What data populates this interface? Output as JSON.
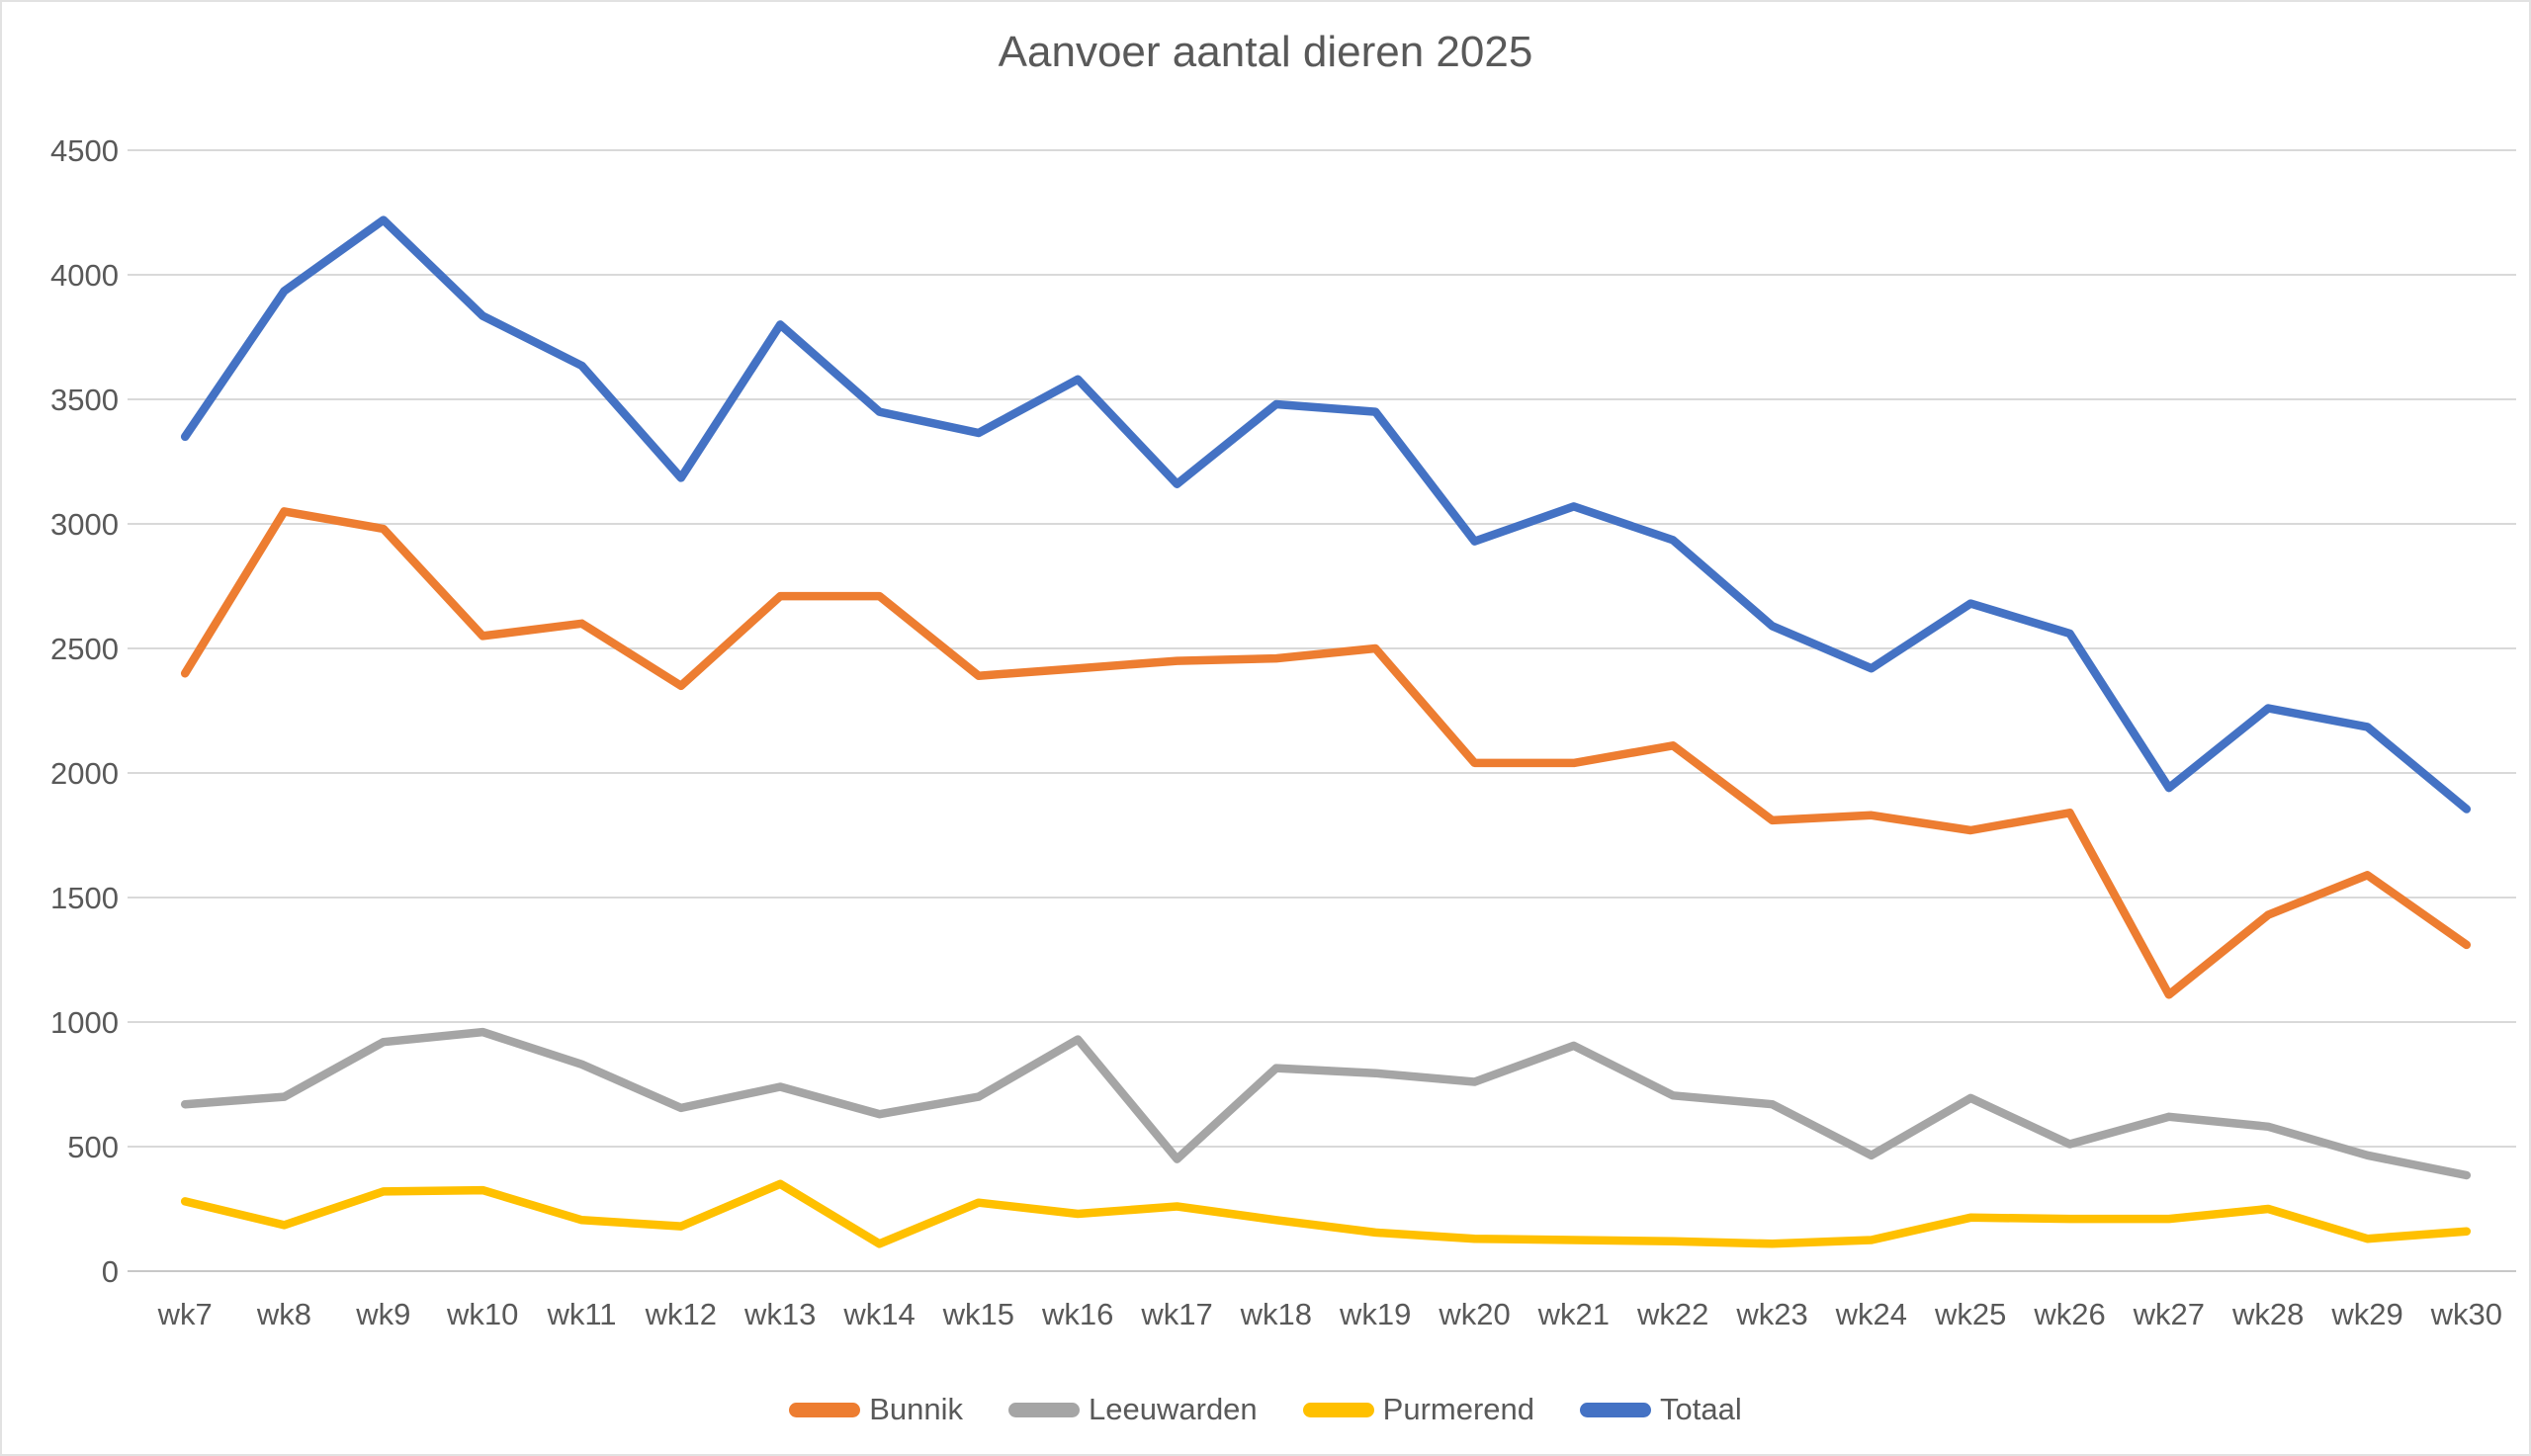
{
  "title": "Aanvoer aantal dieren 2025",
  "chart_data": {
    "type": "line",
    "title": "Aanvoer aantal dieren 2025",
    "categories": [
      "wk7",
      "wk8",
      "wk9",
      "wk10",
      "wk11",
      "wk12",
      "wk13",
      "wk14",
      "wk15",
      "wk16",
      "wk17",
      "wk18",
      "wk19",
      "wk20",
      "wk21",
      "wk22",
      "wk23",
      "wk24",
      "wk25",
      "wk26",
      "wk27",
      "wk28",
      "wk29",
      "wk30"
    ],
    "series": [
      {
        "name": "Bunnik",
        "color": "#ED7D31",
        "values": [
          2400,
          3050,
          2980,
          2550,
          2600,
          2350,
          2710,
          2710,
          2390,
          2420,
          2450,
          2460,
          2500,
          2040,
          2040,
          2110,
          1810,
          1830,
          1770,
          1840,
          1110,
          1430,
          1590,
          1310
        ]
      },
      {
        "name": "Leeuwarden",
        "color": "#A5A5A5",
        "values": [
          670,
          700,
          920,
          960,
          830,
          655,
          740,
          630,
          700,
          930,
          450,
          815,
          795,
          760,
          905,
          705,
          670,
          465,
          695,
          510,
          620,
          580,
          465,
          385
        ]
      },
      {
        "name": "Purmerend",
        "color": "#FFC000",
        "values": [
          280,
          185,
          320,
          325,
          205,
          180,
          350,
          110,
          275,
          230,
          260,
          205,
          155,
          130,
          125,
          120,
          110,
          125,
          215,
          210,
          210,
          250,
          130,
          160
        ]
      },
      {
        "name": "Totaal",
        "color": "#4472C4",
        "values": [
          3350,
          3935,
          4220,
          3835,
          3635,
          3185,
          3800,
          3450,
          3365,
          3580,
          3160,
          3480,
          3450,
          2930,
          3070,
          2935,
          2590,
          2420,
          2680,
          2560,
          1940,
          2260,
          2185,
          1855
        ]
      }
    ],
    "xlabel": "",
    "ylabel": "",
    "ylim": [
      0,
      4500
    ],
    "ytick_step": 500,
    "yticks": [
      "0",
      "500",
      "1000",
      "1500",
      "2000",
      "2500",
      "3000",
      "3500",
      "4000",
      "4500"
    ],
    "grid": true,
    "legend_position": "bottom"
  },
  "style": {
    "gridline_color": "#D9D9D9",
    "zeroline_color": "#C8C8C8",
    "tick_label_color": "#595959",
    "line_width": 8.5
  }
}
